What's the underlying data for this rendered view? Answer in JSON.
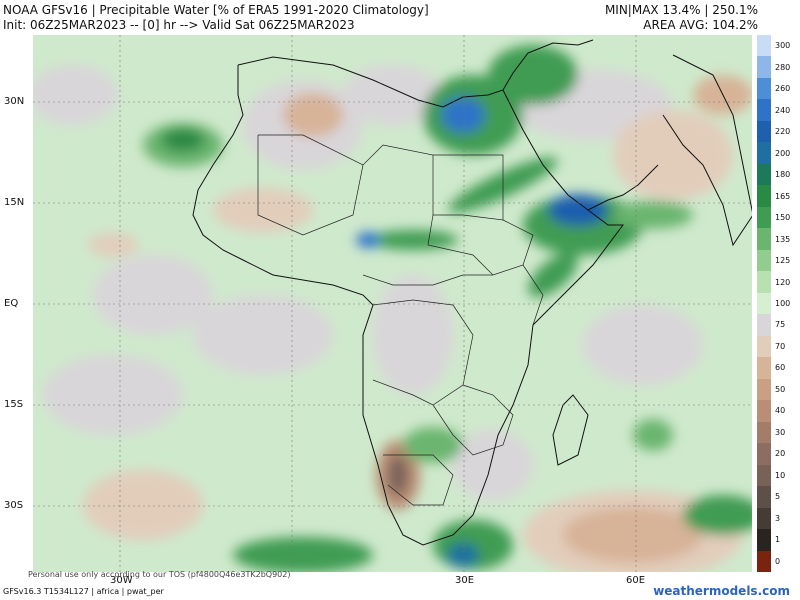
{
  "header": {
    "line1_left": "NOAA GFSv16 | Precipitable Water [% of ERA5 1991-2020 Climatology]",
    "line2_left": "Init: 06Z25MAR2023 -- [0] hr --> Valid Sat 06Z25MAR2023",
    "line1_right": "MIN|MAX 13.4% | 250.1%",
    "line2_right": "AREA AVG: 104.2%"
  },
  "lat_labels": [
    "30N",
    "15N",
    "EQ",
    "15S",
    "30S"
  ],
  "lon_labels": [
    "30W",
    "30E",
    "60E"
  ],
  "colorbar": {
    "labels": [
      "300",
      "280",
      "260",
      "240",
      "220",
      "200",
      "180",
      "165",
      "150",
      "135",
      "125",
      "120",
      "100",
      "75",
      "70",
      "60",
      "50",
      "40",
      "30",
      "20",
      "10",
      "5",
      "3",
      "1",
      "0"
    ],
    "colors": [
      "#c9dcf5",
      "#8fb6ea",
      "#4d8ed8",
      "#2f73c8",
      "#1e5fae",
      "#1f6fa0",
      "#1c7a5a",
      "#2a8a45",
      "#3f9c52",
      "#6bb56f",
      "#93cc8f",
      "#b8e0b0",
      "#d6efd0",
      "#d9d6d9",
      "#e2cdbb",
      "#d7b398",
      "#c9a083",
      "#b98e75",
      "#a37d6a",
      "#8c6d60",
      "#786258",
      "#5e4f48",
      "#463c36",
      "#2a2420",
      "#7a2410"
    ]
  },
  "footer": {
    "model_info": "GFSv16.3 T1534L127 | africa | pwat_per",
    "disclaimer": "Personal use only according to our TOS (pf4800Q46e3TK2bQ902)",
    "brand": "weathermodels.com"
  }
}
